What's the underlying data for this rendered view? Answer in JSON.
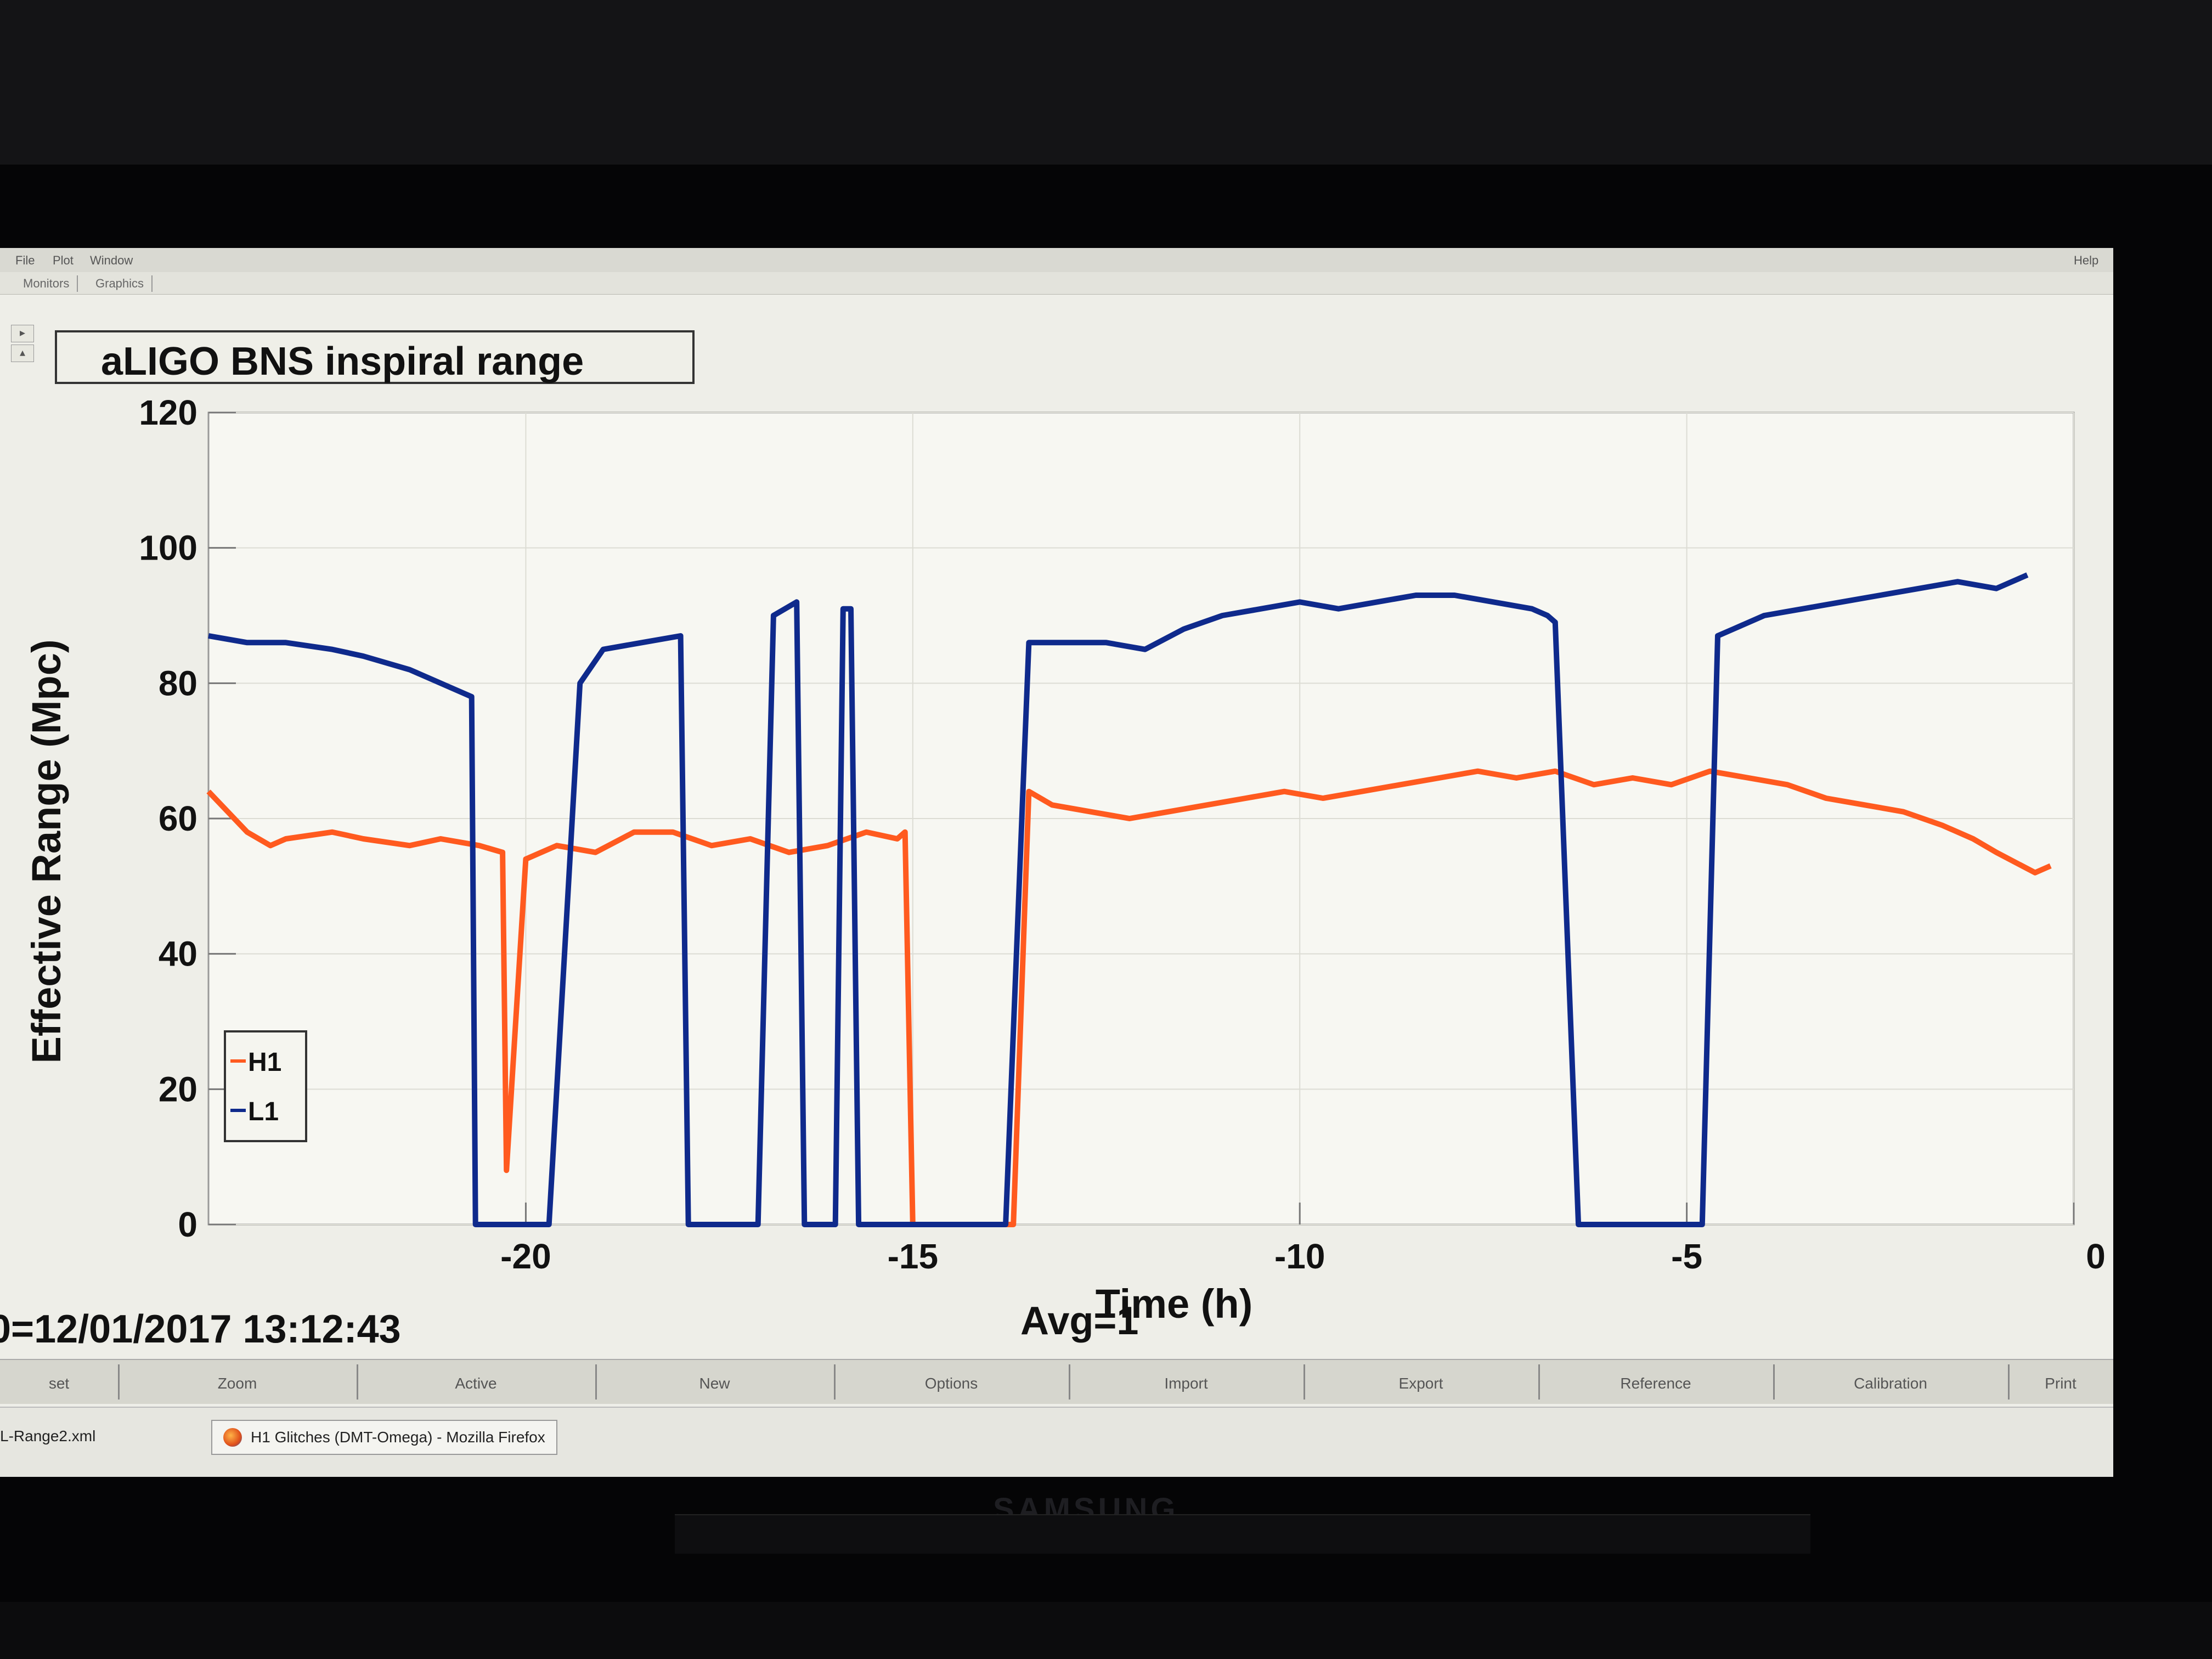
{
  "menu": {
    "file": "File",
    "plot": "Plot",
    "window": "Window",
    "help": "Help"
  },
  "tabs": [
    "Monitors",
    "Graphics"
  ],
  "chart_data": {
    "type": "line",
    "title": "aLIGO BNS inspiral range",
    "xlabel": "Time (h)",
    "ylabel": "Effective Range (Mpc)",
    "xlim": [
      -24.1,
      0
    ],
    "ylim": [
      0,
      120
    ],
    "x_ticks": [
      -20,
      -15,
      -10,
      -5,
      0
    ],
    "y_ticks": [
      0,
      20,
      40,
      60,
      80,
      100,
      120
    ],
    "legend_position": "bottom-left",
    "series": [
      {
        "name": "H1",
        "color": "#ff5a1f",
        "x": [
          -24.1,
          -23.6,
          -23.3,
          -23.1,
          -22.5,
          -22.1,
          -21.5,
          -21.1,
          -20.6,
          -20.3,
          -20.25,
          -20.0,
          -19.6,
          -19.1,
          -18.6,
          -18.1,
          -17.6,
          -17.1,
          -16.6,
          -16.1,
          -15.6,
          -15.2,
          -15.1,
          -15.0,
          -14.8,
          -14.2,
          -13.8,
          -13.7,
          -13.5,
          -13.2,
          -12.7,
          -12.2,
          -11.7,
          -11.2,
          -10.7,
          -10.2,
          -9.7,
          -9.2,
          -8.7,
          -8.2,
          -7.7,
          -7.2,
          -6.7,
          -6.2,
          -5.7,
          -5.2,
          -4.7,
          -4.2,
          -3.7,
          -3.2,
          -2.7,
          -2.2,
          -1.7,
          -1.3,
          -1.0,
          -0.5,
          -0.3
        ],
        "y": [
          64,
          58,
          56,
          57,
          58,
          57,
          56,
          57,
          56,
          55,
          8,
          54,
          56,
          55,
          58,
          58,
          56,
          57,
          55,
          56,
          58,
          57,
          58,
          0,
          0,
          0,
          0,
          0,
          64,
          62,
          61,
          60,
          61,
          62,
          63,
          64,
          63,
          64,
          65,
          66,
          67,
          66,
          67,
          65,
          66,
          65,
          67,
          66,
          65,
          63,
          62,
          61,
          59,
          57,
          55,
          52,
          53
        ]
      },
      {
        "name": "L1",
        "color": "#0f2a8c",
        "x": [
          -24.1,
          -23.6,
          -23.1,
          -22.5,
          -22.1,
          -21.5,
          -21.1,
          -20.9,
          -20.7,
          -20.65,
          -20.5,
          -20.3,
          -20.1,
          -19.9,
          -19.7,
          -19.5,
          -19.3,
          -19.0,
          -18.5,
          -18.0,
          -17.9,
          -17.7,
          -17.6,
          -17.2,
          -17.0,
          -16.8,
          -16.5,
          -16.4,
          -16.3,
          -16.0,
          -15.9,
          -15.8,
          -15.7,
          -15.4,
          -15.0,
          -14.5,
          -14.3,
          -14.2,
          -13.8,
          -13.5,
          -13.0,
          -12.5,
          -12.0,
          -11.5,
          -11.0,
          -10.5,
          -10.0,
          -9.5,
          -9.0,
          -8.5,
          -8.0,
          -7.5,
          -7.0,
          -6.8,
          -6.7,
          -6.4,
          -6.0,
          -5.5,
          -5.0,
          -4.8,
          -4.6,
          -4.4,
          -4.0,
          -3.5,
          -3.0,
          -2.5,
          -2.0,
          -1.5,
          -1.0,
          -0.6
        ],
        "y": [
          87,
          86,
          86,
          85,
          84,
          82,
          80,
          79,
          78,
          0,
          0,
          0,
          0,
          0,
          0,
          40,
          80,
          85,
          86,
          87,
          0,
          0,
          0,
          0,
          0,
          90,
          92,
          0,
          0,
          0,
          91,
          91,
          0,
          0,
          0,
          0,
          0,
          0,
          0,
          86,
          86,
          86,
          85,
          88,
          90,
          91,
          92,
          91,
          92,
          93,
          93,
          92,
          91,
          90,
          89,
          0,
          0,
          0,
          0,
          0,
          87,
          88,
          90,
          91,
          92,
          93,
          94,
          95,
          94,
          96
        ]
      }
    ]
  },
  "status": {
    "t0": "0=12/01/2017 13:12:43",
    "avg": "Avg=1"
  },
  "toolbar": [
    "set",
    "Zoom",
    "Active",
    "New",
    "Options",
    "Import",
    "Export",
    "Reference",
    "Calibration",
    "Print"
  ],
  "taskbar": {
    "item1": "L-Range2.xml",
    "item2": "H1 Glitches (DMT-Omega) - Mozilla Firefox"
  },
  "brand": "SAMSUNG"
}
